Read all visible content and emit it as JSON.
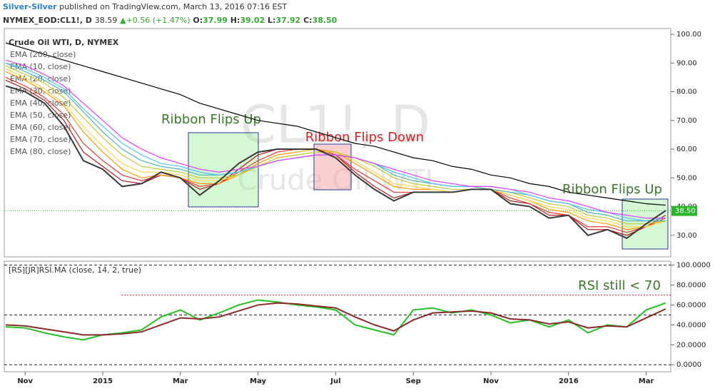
{
  "header": {
    "author": "Silver-Silver",
    "published": "published on TradingView.com, March 13, 2016 07:16 EST",
    "symbol": "NYMEX_EOD:CL1!, D",
    "price": "38.59",
    "arrow": "▲",
    "change": "+0.56 (+1.47%)",
    "o_label": "O:",
    "o": "37.99",
    "h_label": "H:",
    "h": "39.02",
    "l_label": "L:",
    "l": "37.92",
    "c_label": "C:",
    "c": "38.50"
  },
  "chart_data": [
    {
      "type": "line",
      "title": "Crude Oil WTI, D, NYMEX",
      "watermark": "CL1!, D",
      "watermark_sub": "Crude Oil WTI",
      "ylim": [
        22.5,
        102
      ],
      "yticks": [
        {
          "value": 30,
          "label": "30.00"
        },
        {
          "value": 40,
          "label": "40.00"
        },
        {
          "value": 50,
          "label": "50.00"
        },
        {
          "value": 60,
          "label": "60.00"
        },
        {
          "value": 70,
          "label": "70.00"
        },
        {
          "value": 80,
          "label": "80.00"
        },
        {
          "value": 90,
          "label": "90.00"
        },
        {
          "value": 100,
          "label": "100.00"
        }
      ],
      "last_price": {
        "value": 38.5,
        "label": "38.50"
      },
      "annotations": [
        "Ribbon Flips Up",
        "Ribbon Flips Down",
        "Ribbon Flips Up"
      ],
      "price": {
        "color": "#3a3a3a",
        "values": [
          82,
          80,
          76,
          68,
          56,
          53,
          47,
          48,
          52,
          50,
          44,
          49,
          55,
          59,
          60,
          60,
          60,
          57,
          51,
          46,
          42,
          45,
          45,
          45,
          46,
          46,
          41,
          40,
          36,
          37,
          30,
          32,
          29,
          34,
          38.59
        ]
      },
      "series": [
        {
          "name": "EMA (200, close)",
          "color": "#000000",
          "values": [
            97,
            95,
            93,
            91,
            89,
            87,
            85,
            83,
            81,
            79,
            76,
            74,
            72,
            70,
            69,
            68,
            66,
            64,
            62,
            61,
            59,
            57,
            56,
            54,
            53,
            51,
            50,
            48,
            47,
            45,
            44,
            43,
            42,
            41,
            40.5
          ]
        },
        {
          "name": "EMA (10, close)",
          "color": "#b71c1c",
          "values": [
            84,
            81,
            77,
            70,
            59,
            54,
            49,
            48,
            51,
            50,
            46,
            48,
            53,
            58,
            60,
            60,
            60,
            58,
            52,
            47,
            43,
            45,
            45,
            45,
            46,
            46,
            42,
            41,
            37,
            37,
            32,
            32,
            30,
            33,
            37
          ]
        },
        {
          "name": "EMA (20, close)",
          "color": "#e53935",
          "values": [
            85,
            82,
            78,
            72,
            62,
            56,
            51,
            49,
            51,
            50,
            47,
            48,
            52,
            56,
            59,
            60,
            60,
            58,
            53,
            49,
            45,
            45,
            45,
            45,
            46,
            46,
            43,
            41,
            38,
            37,
            33,
            33,
            31,
            33,
            36
          ]
        },
        {
          "name": "EMA (30, close)",
          "color": "#ff9800",
          "values": [
            87,
            84,
            80,
            75,
            66,
            59,
            53,
            50,
            51,
            50,
            48,
            48,
            51,
            55,
            58,
            59,
            60,
            59,
            55,
            51,
            47,
            46,
            46,
            45,
            46,
            46,
            44,
            42,
            39,
            38,
            35,
            34,
            32,
            33,
            35
          ]
        },
        {
          "name": "EMA (40, close)",
          "color": "#ffd54f",
          "values": [
            88,
            85,
            81,
            76,
            68,
            61,
            55,
            52,
            52,
            51,
            49,
            49,
            51,
            54,
            57,
            58,
            59,
            59,
            56,
            52,
            48,
            47,
            46,
            45,
            46,
            46,
            44,
            42,
            40,
            39,
            36,
            35,
            33,
            33,
            35
          ]
        },
        {
          "name": "EMA (50, close)",
          "color": "#c0ca33",
          "values": [
            89,
            86,
            83,
            78,
            71,
            64,
            58,
            54,
            53,
            52,
            50,
            50,
            51,
            54,
            57,
            58,
            59,
            59,
            57,
            54,
            50,
            48,
            47,
            46,
            46,
            46,
            45,
            43,
            41,
            40,
            37,
            36,
            34,
            34,
            35
          ]
        },
        {
          "name": "EMA (60, close)",
          "color": "#4db6ac",
          "values": [
            90,
            87,
            84,
            80,
            73,
            66,
            60,
            56,
            54,
            53,
            51,
            51,
            52,
            54,
            56,
            57,
            58,
            58,
            57,
            55,
            51,
            49,
            48,
            47,
            47,
            46,
            45,
            44,
            42,
            41,
            38,
            37,
            35,
            35,
            35
          ]
        },
        {
          "name": "EMA (70, close)",
          "color": "#4fc3f7",
          "values": [
            90,
            88,
            85,
            81,
            74,
            68,
            62,
            58,
            55,
            54,
            52,
            51,
            52,
            54,
            56,
            57,
            58,
            58,
            57,
            55,
            52,
            50,
            48,
            47,
            47,
            47,
            46,
            44,
            42,
            41,
            39,
            38,
            36,
            35,
            36
          ]
        },
        {
          "name": "EMA (80, close)",
          "color": "#e040fb",
          "values": [
            91,
            89,
            86,
            82,
            76,
            70,
            64,
            60,
            57,
            55,
            53,
            52,
            53,
            54,
            56,
            57,
            58,
            58,
            57,
            55,
            53,
            51,
            49,
            48,
            47,
            47,
            46,
            45,
            43,
            42,
            40,
            38,
            37,
            36,
            36
          ]
        }
      ]
    },
    {
      "type": "line",
      "title": "[RS][JR]RSI.MA (close, 14, 2, true)",
      "annotation": "RSI still < 70",
      "categories": [
        null,
        "Nov",
        null,
        null,
        null,
        "2015",
        null,
        null,
        null,
        "Mar",
        null,
        null,
        null,
        "May",
        null,
        null,
        null,
        "Jul",
        null,
        null,
        null,
        "Sep",
        null,
        null,
        null,
        "Nov",
        null,
        null,
        null,
        "2016",
        null,
        null,
        null,
        "Mar",
        null
      ],
      "ylim": [
        -7,
        104
      ],
      "yticks": [
        {
          "value": 0,
          "label": "0.0000"
        },
        {
          "value": 20,
          "label": "20.0000"
        },
        {
          "value": 40,
          "label": "40.0000"
        },
        {
          "value": 60,
          "label": "60.0000"
        },
        {
          "value": 80,
          "label": "80.0000"
        },
        {
          "value": 100,
          "label": "100.0000"
        }
      ],
      "levels": [
        100,
        70,
        50,
        0
      ],
      "series": [
        {
          "color": "#22c322",
          "values": [
            38,
            37,
            32,
            28,
            25,
            30,
            32,
            35,
            48,
            55,
            45,
            52,
            60,
            65,
            63,
            60,
            58,
            55,
            40,
            35,
            30,
            55,
            57,
            52,
            55,
            50,
            42,
            45,
            38,
            45,
            32,
            40,
            38,
            55,
            62
          ]
        },
        {
          "color": "#8b2a2a",
          "values": [
            40,
            39,
            36,
            33,
            30,
            30,
            31,
            33,
            40,
            47,
            46,
            48,
            54,
            60,
            62,
            61,
            59,
            57,
            48,
            40,
            34,
            45,
            52,
            53,
            54,
            52,
            46,
            45,
            41,
            43,
            37,
            39,
            38,
            47,
            56
          ]
        }
      ]
    }
  ]
}
